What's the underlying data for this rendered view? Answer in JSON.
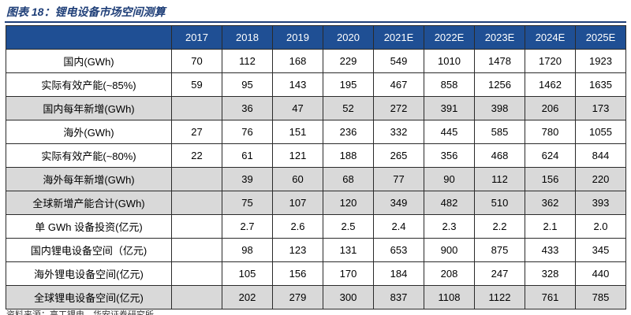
{
  "title": "图表 18：锂电设备市场空间测算",
  "columns": [
    "2017",
    "2018",
    "2019",
    "2020",
    "2021E",
    "2022E",
    "2023E",
    "2024E",
    "2025E"
  ],
  "rows": [
    {
      "label": "国内(GWh)",
      "shade": false,
      "values": [
        "70",
        "112",
        "168",
        "229",
        "549",
        "1010",
        "1478",
        "1720",
        "1923"
      ]
    },
    {
      "label": "实际有效产能(~85%)",
      "shade": false,
      "values": [
        "59",
        "95",
        "143",
        "195",
        "467",
        "858",
        "1256",
        "1462",
        "1635"
      ]
    },
    {
      "label": "国内每年新增(GWh)",
      "shade": true,
      "values": [
        "",
        "36",
        "47",
        "52",
        "272",
        "391",
        "398",
        "206",
        "173"
      ]
    },
    {
      "label": "海外(GWh)",
      "shade": false,
      "values": [
        "27",
        "76",
        "151",
        "236",
        "332",
        "445",
        "585",
        "780",
        "1055"
      ]
    },
    {
      "label": "实际有效产能(~80%)",
      "shade": false,
      "values": [
        "22",
        "61",
        "121",
        "188",
        "265",
        "356",
        "468",
        "624",
        "844"
      ]
    },
    {
      "label": "海外每年新增(GWh)",
      "shade": true,
      "values": [
        "",
        "39",
        "60",
        "68",
        "77",
        "90",
        "112",
        "156",
        "220"
      ]
    },
    {
      "label": "全球新增产能合计(GWh)",
      "shade": true,
      "values": [
        "",
        "75",
        "107",
        "120",
        "349",
        "482",
        "510",
        "362",
        "393"
      ]
    },
    {
      "label": "单 GWh 设备投资(亿元)",
      "shade": false,
      "values": [
        "",
        "2.7",
        "2.6",
        "2.5",
        "2.4",
        "2.3",
        "2.2",
        "2.1",
        "2.0"
      ]
    },
    {
      "label": "国内锂电设备空间（亿元)",
      "shade": false,
      "values": [
        "",
        "98",
        "123",
        "131",
        "653",
        "900",
        "875",
        "433",
        "345"
      ]
    },
    {
      "label": "海外锂电设备空间(亿元)",
      "shade": false,
      "values": [
        "",
        "105",
        "156",
        "170",
        "184",
        "208",
        "247",
        "328",
        "440"
      ]
    },
    {
      "label": "全球锂电设备空间(亿元)",
      "shade": true,
      "values": [
        "",
        "202",
        "279",
        "300",
        "837",
        "1108",
        "1122",
        "761",
        "785"
      ]
    }
  ],
  "source": "资料来源：高工锂电，华安证券研究所"
}
